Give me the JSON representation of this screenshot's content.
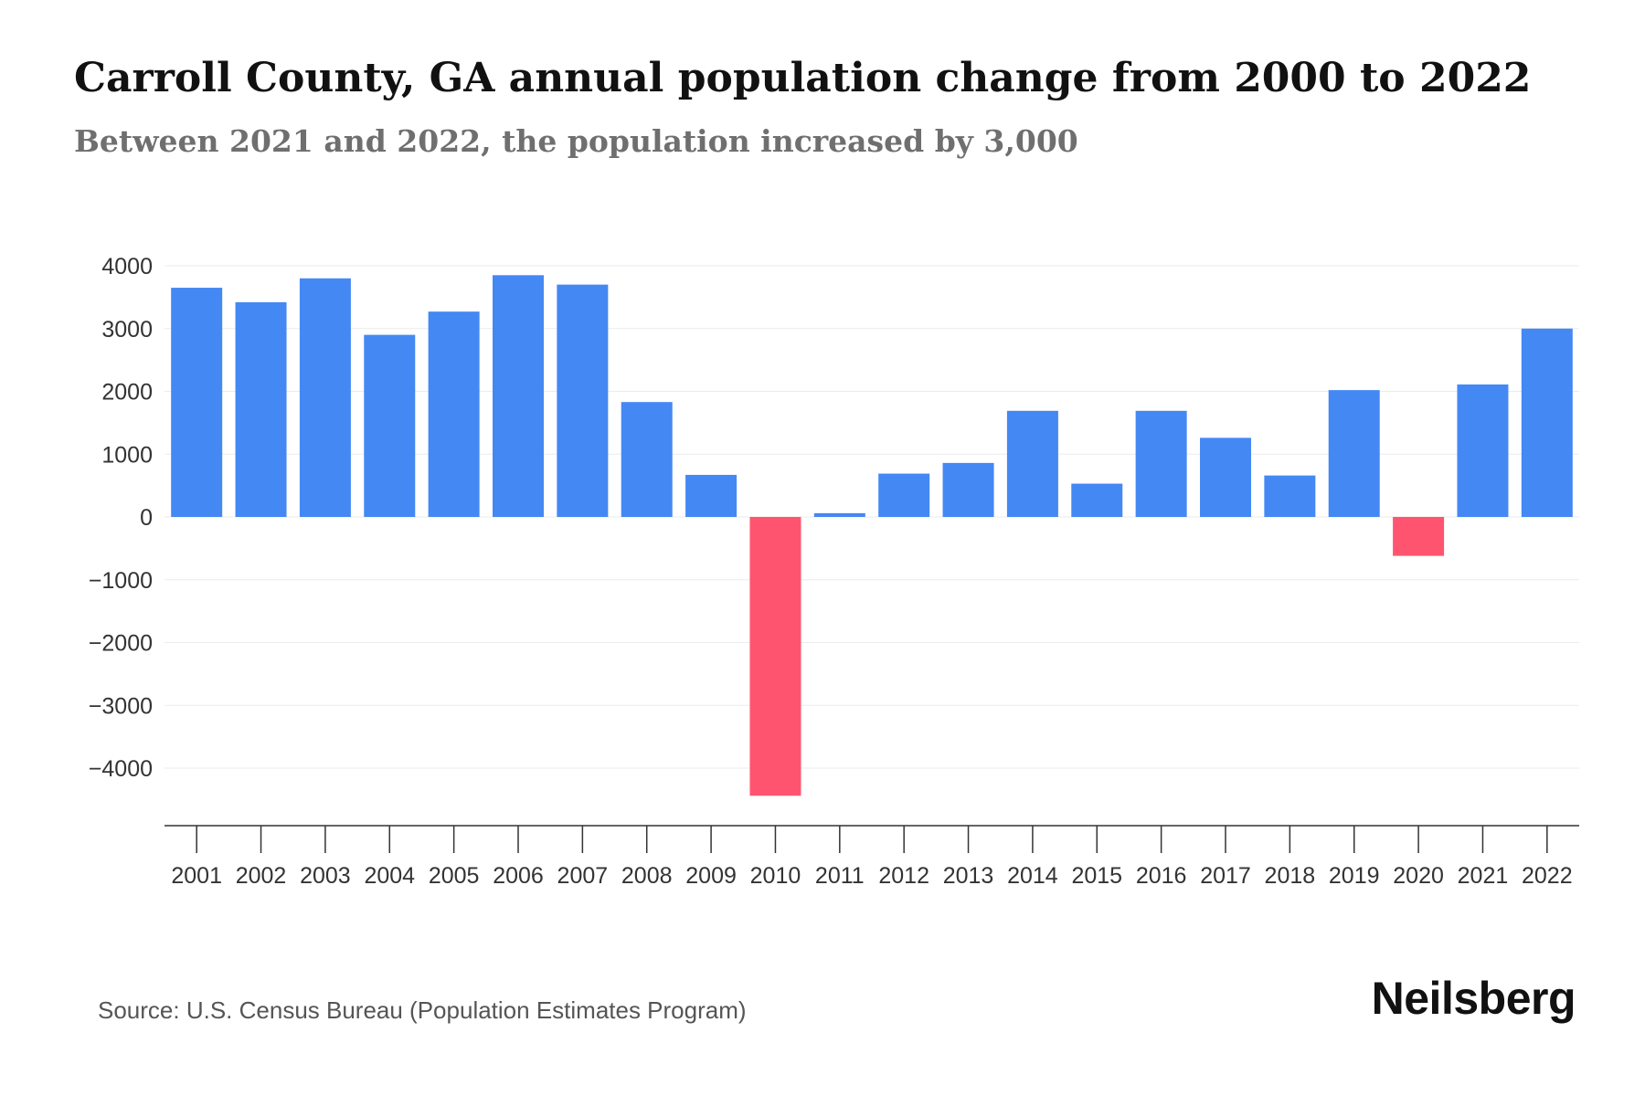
{
  "header": {
    "title": "Carroll County, GA annual population change from 2000 to 2022",
    "subtitle": "Between 2021 and 2022, the population increased by 3,000"
  },
  "footer": {
    "source": "Source: U.S. Census Bureau (Population Estimates Program)",
    "brand": "Neilsberg"
  },
  "colors": {
    "positive": "#4488f4",
    "negative": "#ff5470",
    "grid": "#ebebeb",
    "axis": "#333333",
    "tick_label": "#333333"
  },
  "chart_data": {
    "type": "bar",
    "title": "Carroll County, GA annual population change from 2000 to 2022",
    "xlabel": "",
    "ylabel": "",
    "ylim": [
      -4500,
      4000
    ],
    "yticks": [
      4000,
      3000,
      2000,
      1000,
      0,
      -1000,
      -2000,
      -3000,
      -4000
    ],
    "ytick_labels": [
      "4000",
      "3000",
      "2000",
      "1000",
      "0",
      "−1000",
      "−2000",
      "−3000",
      "−4000"
    ],
    "grid": true,
    "categories": [
      "2001",
      "2002",
      "2003",
      "2004",
      "2005",
      "2006",
      "2007",
      "2008",
      "2009",
      "2010",
      "2011",
      "2012",
      "2013",
      "2014",
      "2015",
      "2016",
      "2017",
      "2018",
      "2019",
      "2020",
      "2021",
      "2022"
    ],
    "values": [
      3650,
      3420,
      3800,
      2900,
      3270,
      3850,
      3700,
      1830,
      670,
      -4440,
      60,
      690,
      860,
      1690,
      530,
      1690,
      1260,
      660,
      2020,
      -620,
      2110,
      3000
    ]
  }
}
